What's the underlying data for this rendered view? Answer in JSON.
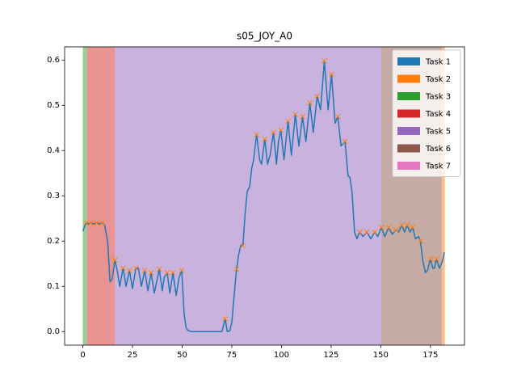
{
  "chart_data": {
    "type": "line",
    "title": "s05_JOY_A0",
    "xlim": [
      -9.15,
      192.15
    ],
    "ylim": [
      -0.03,
      0.629
    ],
    "xticks": [
      0,
      25,
      50,
      75,
      100,
      125,
      150,
      175
    ],
    "yticks": [
      {
        "value": 0,
        "label": "0.0"
      },
      0.1,
      0.2,
      0.3,
      0.4,
      0.5,
      0.6
    ],
    "legend_position": "upper right",
    "spans": [
      {
        "name": "Task 1",
        "color": "#1f77b4",
        "start": null,
        "end": null
      },
      {
        "name": "Task 2",
        "color": "#ff7f0e",
        "start": 180.7,
        "end": 182.3
      },
      {
        "name": "Task 3",
        "color": "#2ca02c",
        "start": 0,
        "end": 2
      },
      {
        "name": "Task 4",
        "color": "#d62728",
        "start": 2,
        "end": 16.2
      },
      {
        "name": "Task 5",
        "color": "#9467bd",
        "start": 16.2,
        "end": 150.3
      },
      {
        "name": "Task 6",
        "color": "#8c564b",
        "start": 150.3,
        "end": 180.7
      },
      {
        "name": "Task 7",
        "color": "#e377c2",
        "start": null,
        "end": null
      }
    ],
    "series": [
      {
        "color": "#1f77b4",
        "marker": "none",
        "x": [
          0,
          1.6,
          3,
          4,
          5.5,
          6.9,
          8.3,
          9.7,
          11,
          12.5,
          13.7,
          14.7,
          16.2,
          17.5,
          18.6,
          20.3,
          21.8,
          23.5,
          25,
          26.7,
          28,
          29.5,
          31.2,
          32.8,
          34.4,
          36,
          38.5,
          40,
          41,
          42.5,
          43.8,
          45.4,
          47,
          48.5,
          49.8,
          51,
          52,
          53,
          55,
          60,
          65,
          70,
          71.7,
          72.7,
          74,
          75,
          76.2,
          77.4,
          78.5,
          79.5,
          80.6,
          81.7,
          82.8,
          84,
          85,
          86,
          87.5,
          89,
          90,
          91.6,
          93,
          94.3,
          96,
          97.5,
          98.5,
          99.7,
          101.3,
          103.3,
          105,
          107,
          108.8,
          110.6,
          112.3,
          114.3,
          116,
          118,
          119.7,
          121.6,
          123.5,
          125.2,
          127,
          128.4,
          130,
          132,
          133.5,
          134.5,
          135.5,
          136.8,
          138,
          139.4,
          141,
          143,
          145,
          147,
          148.5,
          150.3,
          152,
          154,
          155.8,
          157.6,
          159,
          160.5,
          162,
          163.3,
          164.7,
          166,
          167.5,
          169,
          170,
          171.2,
          172.5,
          173.5,
          175,
          176.2,
          177,
          178,
          179.5,
          181,
          182
        ],
        "values": [
          0.222,
          0.24,
          0.238,
          0.24,
          0.238,
          0.24,
          0.238,
          0.24,
          0.235,
          0.2,
          0.11,
          0.115,
          0.158,
          0.13,
          0.1,
          0.14,
          0.1,
          0.135,
          0.095,
          0.14,
          0.14,
          0.1,
          0.135,
          0.09,
          0.13,
          0.085,
          0.138,
          0.09,
          0.12,
          0.13,
          0.085,
          0.13,
          0.08,
          0.12,
          0.135,
          0.04,
          0.008,
          0.002,
          0,
          0,
          0,
          0,
          0.028,
          0,
          0.002,
          0.02,
          0.08,
          0.138,
          0.17,
          0.19,
          0.19,
          0.26,
          0.31,
          0.32,
          0.36,
          0.38,
          0.435,
          0.38,
          0.37,
          0.425,
          0.37,
          0.39,
          0.44,
          0.37,
          0.42,
          0.445,
          0.38,
          0.465,
          0.39,
          0.48,
          0.41,
          0.475,
          0.42,
          0.505,
          0.44,
          0.52,
          0.49,
          0.598,
          0.49,
          0.568,
          0.46,
          0.475,
          0.41,
          0.42,
          0.345,
          0.34,
          0.31,
          0.22,
          0.205,
          0.22,
          0.21,
          0.22,
          0.205,
          0.22,
          0.21,
          0.23,
          0.21,
          0.23,
          0.215,
          0.225,
          0.22,
          0.235,
          0.22,
          0.235,
          0.22,
          0.23,
          0.205,
          0.21,
          0.2,
          0.155,
          0.13,
          0.135,
          0.16,
          0.14,
          0.14,
          0.16,
          0.14,
          0.155,
          0.175
        ]
      },
      {
        "color": "#ff7f0e",
        "marker": "x",
        "x": [
          1.6,
          4,
          6.9,
          9.7,
          16.2,
          20.3,
          23.5,
          26.7,
          31.2,
          34.4,
          38.5,
          42.5,
          45.4,
          49.8,
          71.7,
          77.4,
          80.6,
          87.5,
          91.6,
          96,
          99.7,
          103.3,
          107,
          110.6,
          114.3,
          118,
          121.6,
          125.2,
          128.4,
          132,
          139.4,
          143,
          147,
          150.3,
          154,
          157.6,
          160.5,
          163.3,
          166,
          170.2,
          175,
          178
        ],
        "values": [
          0.24,
          0.24,
          0.24,
          0.24,
          0.158,
          0.14,
          0.135,
          0.14,
          0.135,
          0.13,
          0.138,
          0.13,
          0.13,
          0.135,
          0.028,
          0.138,
          0.19,
          0.435,
          0.425,
          0.44,
          0.445,
          0.465,
          0.48,
          0.475,
          0.505,
          0.52,
          0.598,
          0.568,
          0.475,
          0.42,
          0.22,
          0.22,
          0.22,
          0.23,
          0.23,
          0.225,
          0.235,
          0.235,
          0.23,
          0.2,
          0.16,
          0.16
        ]
      }
    ]
  }
}
